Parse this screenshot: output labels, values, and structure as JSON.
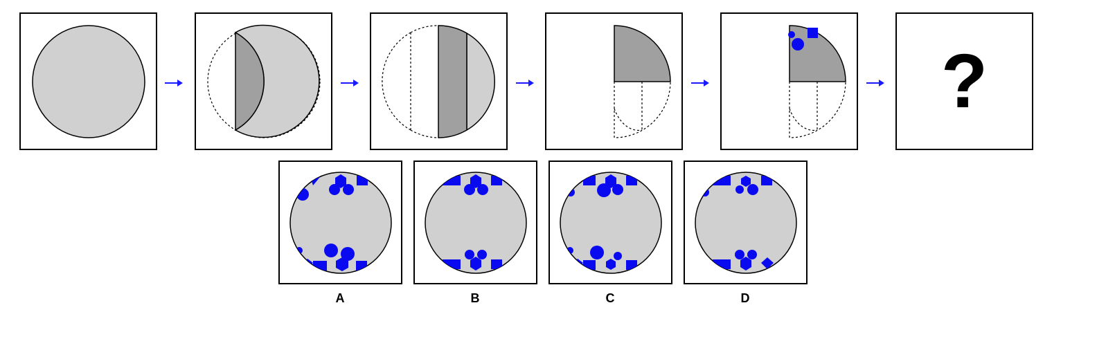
{
  "colors": {
    "paper": "#d0d0d0",
    "paper_dark": "#a0a0a0",
    "hole": "#0a0af0",
    "arrow": "#1a1aff",
    "border": "#000000"
  },
  "sequence": {
    "steps": [
      "step-1-paper",
      "step-2-fold-left",
      "step-3-fold-right",
      "step-4-fold-quarter",
      "step-5-punch",
      "step-6-unknown"
    ],
    "unknown_mark": "?"
  },
  "options": [
    {
      "label": "A"
    },
    {
      "label": "B"
    },
    {
      "label": "C"
    },
    {
      "label": "D"
    }
  ]
}
